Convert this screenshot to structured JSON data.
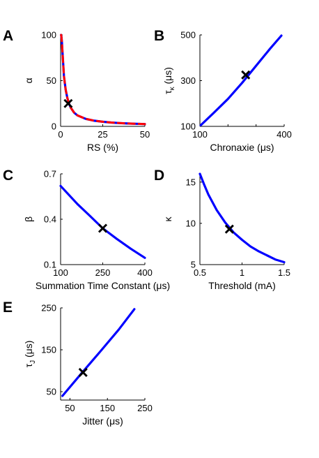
{
  "colors": {
    "curve": "#0000ff",
    "curve_dashed": "#ff0000",
    "marker": "#000000",
    "axis": "#000000"
  },
  "chart_data": [
    {
      "panel": "A",
      "type": "line",
      "xlabel": "RS (%)",
      "ylabel": "α",
      "xlim": [
        0,
        50
      ],
      "ylim": [
        0,
        100
      ],
      "xticks": [
        0,
        25,
        50
      ],
      "yticks": [
        0,
        50,
        100
      ],
      "series": [
        {
          "style": "solid",
          "color": "#0000ff",
          "x": [
            0.3,
            0.5,
            0.8,
            1,
            1.5,
            2,
            3,
            4,
            5,
            6,
            8,
            10,
            15,
            20,
            25,
            30,
            35,
            40,
            45,
            50
          ],
          "y": [
            100,
            98,
            92,
            85,
            70,
            55,
            40,
            31,
            25,
            20.5,
            15,
            12,
            8.2,
            6.2,
            5,
            4.2,
            3.6,
            3.1,
            2.8,
            2.5
          ]
        },
        {
          "style": "dashed",
          "color": "#ff0000",
          "x": [
            0.3,
            0.5,
            0.8,
            1,
            1.5,
            2,
            3,
            4,
            5,
            6,
            8,
            10,
            15,
            20,
            25,
            30,
            35,
            40,
            45,
            50
          ],
          "y": [
            100,
            98,
            92,
            85,
            70,
            55,
            40,
            31,
            25,
            20.5,
            15,
            12,
            8.2,
            6.2,
            5,
            4.2,
            3.6,
            3.1,
            2.8,
            2.5
          ]
        }
      ],
      "marker": {
        "x": 4.5,
        "y": 25
      }
    },
    {
      "panel": "B",
      "type": "line",
      "xlabel": "Chronaxie (μs)",
      "ylabel": "τκ (μs)",
      "ylabel_main": "τ",
      "ylabel_sub": "κ",
      "ylabel_unit": "(μs)",
      "xlim": [
        100,
        400
      ],
      "ylim": [
        100,
        500
      ],
      "xticks": [
        100,
        200,
        300,
        400
      ],
      "yticks": [
        100,
        300,
        500
      ],
      "xticklabels": [
        "100",
        "",
        "",
        "400"
      ],
      "series": [
        {
          "style": "solid",
          "color": "#0000ff",
          "x": [
            103,
            150,
            200,
            250,
            300,
            350,
            390
          ],
          "y": [
            105,
            160,
            220,
            290,
            365,
            440,
            497
          ]
        }
      ],
      "marker": {
        "x": 263,
        "y": 325
      }
    },
    {
      "panel": "C",
      "type": "line",
      "xlabel": "Summation Time Constant (μs)",
      "ylabel": "β",
      "xlim": [
        100,
        400
      ],
      "ylim": [
        0.1,
        0.7
      ],
      "xticks": [
        100,
        250,
        400
      ],
      "yticks": [
        0.1,
        0.4,
        0.7
      ],
      "series": [
        {
          "style": "solid",
          "color": "#0000ff",
          "x": [
            100,
            130,
            160,
            200,
            250,
            300,
            350,
            400
          ],
          "y": [
            0.62,
            0.56,
            0.5,
            0.43,
            0.34,
            0.27,
            0.205,
            0.145
          ]
        }
      ],
      "marker": {
        "x": 250,
        "y": 0.34
      }
    },
    {
      "panel": "D",
      "type": "line",
      "xlabel": "Threshold (mA)",
      "ylabel": "κ",
      "xlim": [
        0.5,
        1.5
      ],
      "ylim": [
        5,
        16
      ],
      "xticks": [
        0.5,
        1,
        1.5
      ],
      "yticks": [
        5,
        10,
        15
      ],
      "xticklabels": [
        "0.5",
        "1",
        "1.5"
      ],
      "series": [
        {
          "style": "solid",
          "color": "#0000ff",
          "x": [
            0.5,
            0.55,
            0.6,
            0.7,
            0.8,
            0.9,
            1.0,
            1.1,
            1.2,
            1.3,
            1.4,
            1.5
          ],
          "y": [
            16,
            14.7,
            13.5,
            11.6,
            10.1,
            8.9,
            8.0,
            7.2,
            6.6,
            6.1,
            5.6,
            5.3
          ]
        }
      ],
      "marker": {
        "x": 0.85,
        "y": 9.3
      }
    },
    {
      "panel": "E",
      "type": "line",
      "xlabel": "Jitter (μs)",
      "ylabel": "τJ (μs)",
      "ylabel_main": "τ",
      "ylabel_sub": "J",
      "ylabel_unit": "(μs)",
      "xlim": [
        25,
        250
      ],
      "ylim": [
        30,
        250
      ],
      "xticks": [
        50,
        150,
        250
      ],
      "yticks": [
        50,
        150,
        250
      ],
      "series": [
        {
          "style": "solid",
          "color": "#0000ff",
          "x": [
            30,
            80,
            130,
            180,
            222
          ],
          "y": [
            40,
            93,
            145,
            198,
            247
          ]
        }
      ],
      "marker": {
        "x": 85,
        "y": 96
      }
    }
  ]
}
